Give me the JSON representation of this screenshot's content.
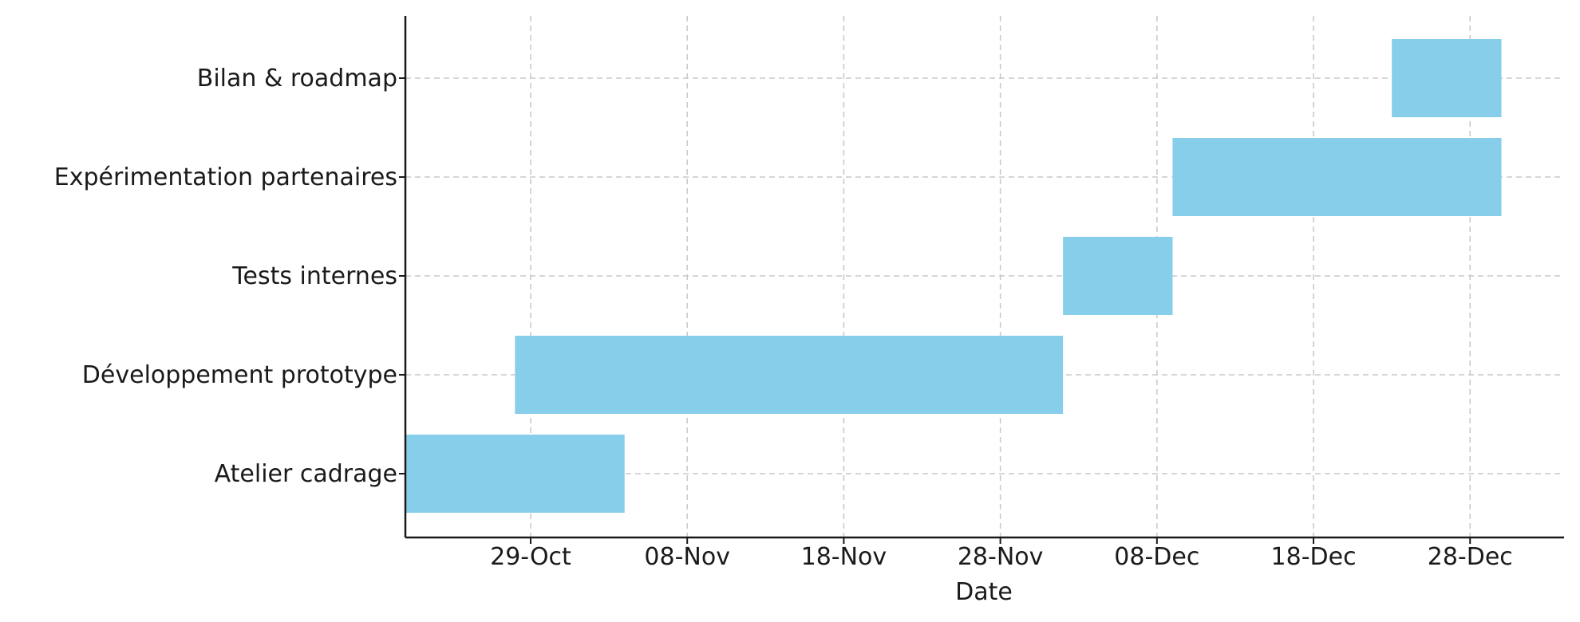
{
  "chart_data": {
    "type": "bar",
    "orientation": "horizontal-gantt",
    "xlabel": "Date",
    "ylabel": "",
    "xlim": [
      "2024-10-21",
      "2025-01-03"
    ],
    "x_tick_dates": [
      "2024-10-29",
      "2024-11-08",
      "2024-11-18",
      "2024-11-28",
      "2024-12-08",
      "2024-12-18",
      "2024-12-28"
    ],
    "x_tick_labels": [
      "29-Oct",
      "08-Nov",
      "18-Nov",
      "28-Nov",
      "08-Dec",
      "18-Dec",
      "28-Dec"
    ],
    "grid": true,
    "bar_color": "#87CEEB",
    "tasks": [
      {
        "name": "Atelier cadrage",
        "start": "2024-10-21",
        "end": "2024-11-04"
      },
      {
        "name": "Développement prototype",
        "start": "2024-10-28",
        "end": "2024-12-02"
      },
      {
        "name": "Tests internes",
        "start": "2024-12-02",
        "end": "2024-12-09"
      },
      {
        "name": "Expérimentation partenaires",
        "start": "2024-12-09",
        "end": "2024-12-30"
      },
      {
        "name": "Bilan & roadmap",
        "start": "2024-12-23",
        "end": "2024-12-30"
      }
    ]
  }
}
